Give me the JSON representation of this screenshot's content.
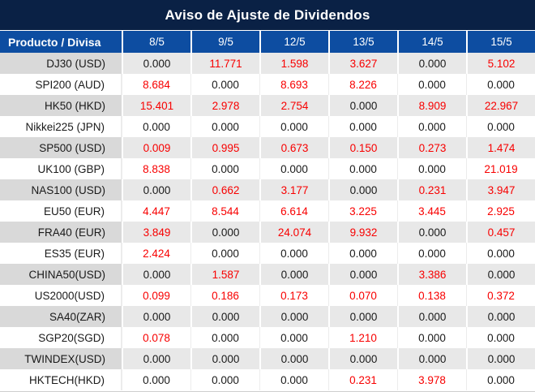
{
  "title": "Aviso de Ajuste de Dividendos",
  "header": {
    "product_column": "Producto / Divisa",
    "date_columns": [
      "8/5",
      "9/5",
      "12/5",
      "13/5",
      "14/5",
      "15/5"
    ]
  },
  "chart_data": {
    "type": "table",
    "title": "Aviso de Ajuste de Dividendos",
    "columns": [
      "Producto / Divisa",
      "8/5",
      "9/5",
      "12/5",
      "13/5",
      "14/5",
      "15/5"
    ],
    "rows": [
      {
        "product": "DJ30 (USD)",
        "values": [
          "0.000",
          "11.771",
          "1.598",
          "3.627",
          "0.000",
          "5.102"
        ]
      },
      {
        "product": "SPI200 (AUD)",
        "values": [
          "8.684",
          "0.000",
          "8.693",
          "8.226",
          "0.000",
          "0.000"
        ]
      },
      {
        "product": "HK50 (HKD)",
        "values": [
          "15.401",
          "2.978",
          "2.754",
          "0.000",
          "8.909",
          "22.967"
        ]
      },
      {
        "product": "Nikkei225 (JPN)",
        "values": [
          "0.000",
          "0.000",
          "0.000",
          "0.000",
          "0.000",
          "0.000"
        ]
      },
      {
        "product": "SP500 (USD)",
        "values": [
          "0.009",
          "0.995",
          "0.673",
          "0.150",
          "0.273",
          "1.474"
        ]
      },
      {
        "product": "UK100 (GBP)",
        "values": [
          "8.838",
          "0.000",
          "0.000",
          "0.000",
          "0.000",
          "21.019"
        ]
      },
      {
        "product": "NAS100 (USD)",
        "values": [
          "0.000",
          "0.662",
          "3.177",
          "0.000",
          "0.231",
          "3.947"
        ]
      },
      {
        "product": "EU50 (EUR)",
        "values": [
          "4.447",
          "8.544",
          "6.614",
          "3.225",
          "3.445",
          "2.925"
        ]
      },
      {
        "product": "FRA40 (EUR)",
        "values": [
          "3.849",
          "0.000",
          "24.074",
          "9.932",
          "0.000",
          "0.457"
        ]
      },
      {
        "product": "ES35 (EUR)",
        "values": [
          "2.424",
          "0.000",
          "0.000",
          "0.000",
          "0.000",
          "0.000"
        ]
      },
      {
        "product": "CHINA50(USD)",
        "values": [
          "0.000",
          "1.587",
          "0.000",
          "0.000",
          "3.386",
          "0.000"
        ]
      },
      {
        "product": "US2000(USD)",
        "values": [
          "0.099",
          "0.186",
          "0.173",
          "0.070",
          "0.138",
          "0.372"
        ]
      },
      {
        "product": "SA40(ZAR)",
        "values": [
          "0.000",
          "0.000",
          "0.000",
          "0.000",
          "0.000",
          "0.000"
        ]
      },
      {
        "product": "SGP20(SGD)",
        "values": [
          "0.078",
          "0.000",
          "0.000",
          "1.210",
          "0.000",
          "0.000"
        ]
      },
      {
        "product": "TWINDEX(USD)",
        "values": [
          "0.000",
          "0.000",
          "0.000",
          "0.000",
          "0.000",
          "0.000"
        ]
      },
      {
        "product": "HKTECH(HKD)",
        "values": [
          "0.000",
          "0.000",
          "0.000",
          "0.231",
          "3.978",
          "0.000"
        ]
      }
    ]
  },
  "colors": {
    "title_bg": "#0A2145",
    "header_bg": "#0D4DA1",
    "stripe_label_bg": "#D9D9D9",
    "stripe_data_bg": "#E8E8E8",
    "highlight_value": "#F80000",
    "default_value": "#1A1A1A"
  }
}
